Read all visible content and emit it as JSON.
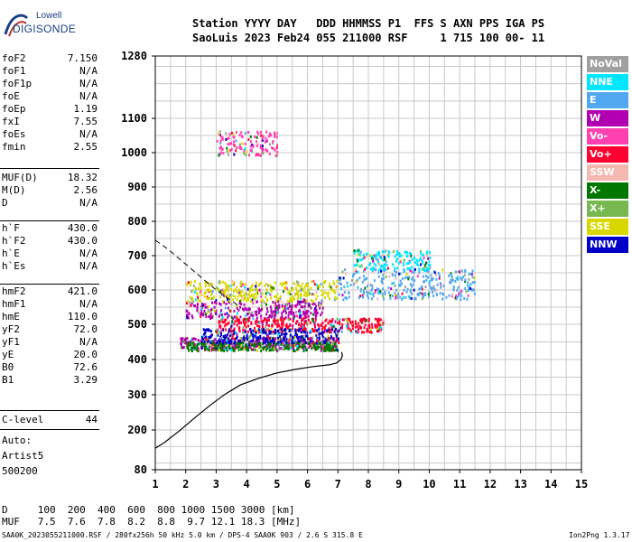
{
  "logo": {
    "line1": "Lowell",
    "line2": "DIGISONDE"
  },
  "header": {
    "line1": "Station YYYY DAY   DDD HHMMSS P1  FFS S AXN PPS IGA PS",
    "line2": "SaoLuis 2023 Feb24 055 211000 RSF     1 715 100 00- 11"
  },
  "params": [
    {
      "k": "foF2",
      "v": "7.150"
    },
    {
      "k": "foF1",
      "v": "N/A"
    },
    {
      "k": "foF1p",
      "v": "N/A"
    },
    {
      "k": "foE",
      "v": "N/A"
    },
    {
      "k": "foEp",
      "v": "1.19"
    },
    {
      "k": "fxI",
      "v": "7.55"
    },
    {
      "k": "foEs",
      "v": "N/A"
    },
    {
      "k": "fmin",
      "v": "2.55"
    },
    {
      "k": "MUF(D)",
      "v": "18.32"
    },
    {
      "k": "M(D)",
      "v": "2.56"
    },
    {
      "k": "D",
      "v": "N/A"
    },
    {
      "k": "h`F",
      "v": "430.0"
    },
    {
      "k": "h`F2",
      "v": "430.0"
    },
    {
      "k": "h`E",
      "v": "N/A"
    },
    {
      "k": "h`Es",
      "v": "N/A"
    },
    {
      "k": "hmF2",
      "v": "421.0"
    },
    {
      "k": "hmF1",
      "v": "N/A"
    },
    {
      "k": "hmE",
      "v": "110.0"
    },
    {
      "k": "yF2",
      "v": "72.0"
    },
    {
      "k": "yF1",
      "v": "N/A"
    },
    {
      "k": "yE",
      "v": "20.0"
    },
    {
      "k": "B0",
      "v": "72.6"
    },
    {
      "k": "B1",
      "v": "3.29"
    },
    {
      "k": "C-level",
      "v": "44"
    }
  ],
  "auto": {
    "line1": "Auto:",
    "line2": "Artist5",
    "line3": "500200"
  },
  "legend": [
    {
      "label": "NoVal",
      "color": "#a0a0a0"
    },
    {
      "label": "NNE",
      "color": "#00e6ff"
    },
    {
      "label": "E",
      "color": "#52a8f0"
    },
    {
      "label": "W",
      "color": "#b000b0"
    },
    {
      "label": "Vo-",
      "color": "#ff40b0"
    },
    {
      "label": "Vo+",
      "color": "#ff0030"
    },
    {
      "label": "SSW",
      "color": "#f5b8b0"
    },
    {
      "label": "X-",
      "color": "#007800"
    },
    {
      "label": "X+",
      "color": "#78b850"
    },
    {
      "label": "SSE",
      "color": "#d8d800"
    },
    {
      "label": "NNW",
      "color": "#0000c8"
    }
  ],
  "bottom": {
    "d_row": "D     100  200  400  600  800 1000 1500 3000 [km]",
    "muf_row": "MUF   7.5  7.6  7.8  8.2  8.8  9.7 12.1 18.3 [MHz]"
  },
  "footer": {
    "left": "SAA0K_2023055211000.RSF / 280fx256h 50 kHz 5.0 km / DPS-4 SAA0K 903 / 2.6 S 315.8 E",
    "right": "Ion2Png 1.3.17"
  },
  "chart_data": {
    "type": "scatter",
    "title": "",
    "xlabel": "",
    "ylabel": "",
    "xlim": [
      1,
      15
    ],
    "ylim": [
      80,
      1280
    ],
    "x_ticks": [
      1,
      2,
      3,
      4,
      5,
      6,
      7,
      8,
      9,
      10,
      11,
      12,
      13,
      14,
      15
    ],
    "y_ticks": [
      80,
      200,
      300,
      400,
      500,
      600,
      700,
      800,
      900,
      1000,
      1100,
      1280
    ],
    "grid": true,
    "profile_curve": {
      "name": "",
      "x": [
        1.0,
        1.3,
        1.8,
        2.3,
        2.8,
        3.3,
        3.8,
        4.4,
        5.0,
        5.6,
        6.2,
        6.7,
        6.95,
        7.1,
        7.15,
        7.12
      ],
      "y": [
        145,
        162,
        198,
        235,
        270,
        302,
        328,
        347,
        362,
        372,
        380,
        385,
        390,
        400,
        412,
        421
      ]
    },
    "extrapolated_curve": {
      "name": "",
      "x": [
        1.0,
        1.4,
        1.8,
        2.2,
        2.6,
        3.0,
        3.4,
        3.8
      ],
      "y": [
        745,
        720,
        690,
        660,
        630,
        600,
        575,
        550
      ]
    },
    "echo_clusters": [
      {
        "direction": "W",
        "x_range": [
          1.8,
          7.0
        ],
        "y_center": 450,
        "y_spread": 15
      },
      {
        "direction": "W",
        "x_range": [
          2.0,
          6.5
        ],
        "y_center": 545,
        "y_spread": 25
      },
      {
        "direction": "Vo+",
        "x_range": [
          3.0,
          8.5
        ],
        "y_center": 500,
        "y_spread": 20
      },
      {
        "direction": "E",
        "x_range": [
          7.0,
          11.5
        ],
        "y_center": 620,
        "y_spread": 45
      },
      {
        "direction": "NNE",
        "x_range": [
          7.5,
          10.0
        ],
        "y_center": 690,
        "y_spread": 30
      },
      {
        "direction": "X-",
        "x_range": [
          2.0,
          7.0
        ],
        "y_center": 440,
        "y_spread": 12
      },
      {
        "direction": "SSE",
        "x_range": [
          2.0,
          7.0
        ],
        "y_center": 600,
        "y_spread": 30
      },
      {
        "direction": "Vo-",
        "x_range": [
          3.0,
          5.0
        ],
        "y_center": 1030,
        "y_spread": 35
      },
      {
        "direction": "NNW",
        "x_range": [
          2.5,
          7.0
        ],
        "y_center": 470,
        "y_spread": 20
      }
    ]
  }
}
